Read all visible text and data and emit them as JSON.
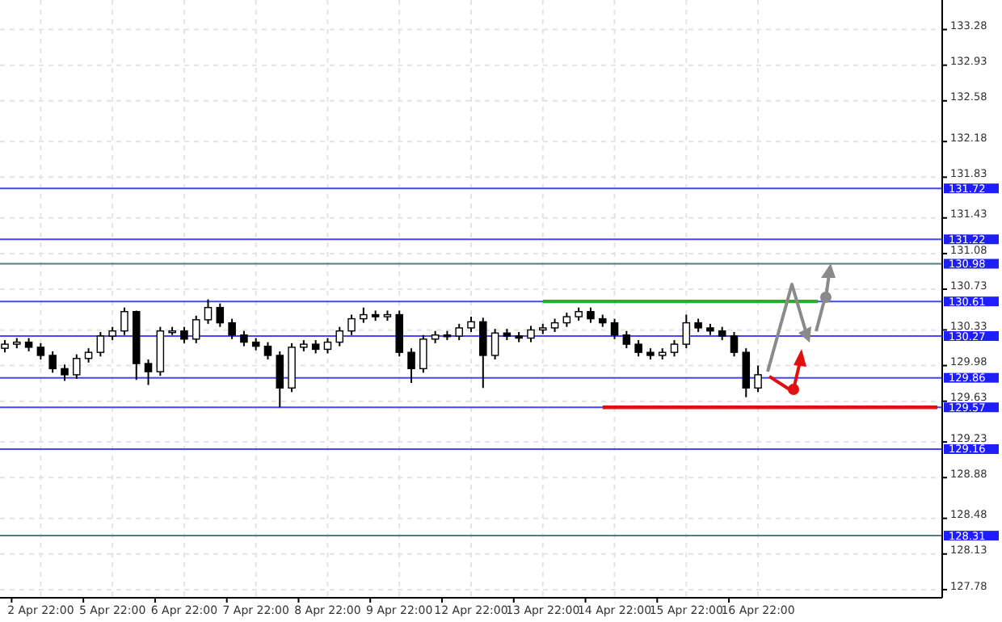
{
  "chart_data": {
    "type": "candlestick",
    "categories": [
      null,
      null,
      null,
      "2 Apr 22:00",
      null,
      null,
      null,
      null,
      null,
      "5 Apr 22:00",
      null,
      null,
      null,
      null,
      null,
      "6 Apr 22:00",
      null,
      null,
      null,
      null,
      null,
      "7 Apr 22:00",
      null,
      null,
      null,
      null,
      null,
      "8 Apr 22:00",
      null,
      null,
      null,
      null,
      null,
      "9 Apr 22:00",
      null,
      null,
      null,
      null,
      null,
      "12 Apr 22:00",
      null,
      null,
      null,
      null,
      null,
      "13 Apr 22:00",
      null,
      null,
      null,
      null,
      null,
      "14 Apr 22:00",
      null,
      null,
      null,
      null,
      null,
      "15 Apr 22:00",
      null,
      null,
      null,
      null,
      null,
      "16 Apr 22:00",
      null,
      null,
      null,
      null,
      null,
      null,
      null,
      null,
      null,
      null,
      null,
      null,
      null,
      null,
      null
    ],
    "ohlc": [
      [
        130.15,
        130.23,
        130.11,
        130.19
      ],
      [
        130.19,
        130.25,
        130.15,
        130.21
      ],
      [
        130.21,
        130.25,
        130.12,
        130.16
      ],
      [
        130.16,
        130.2,
        130.04,
        130.08
      ],
      [
        130.08,
        130.12,
        129.91,
        129.95
      ],
      [
        129.95,
        129.99,
        129.83,
        129.89
      ],
      [
        129.89,
        130.09,
        129.85,
        130.05
      ],
      [
        130.05,
        130.15,
        130.01,
        130.11
      ],
      [
        130.11,
        130.31,
        130.07,
        130.27
      ],
      [
        130.27,
        130.36,
        130.23,
        130.32
      ],
      [
        130.32,
        130.55,
        130.28,
        130.51
      ],
      [
        130.51,
        130.52,
        129.84,
        130.0
      ],
      [
        130.0,
        130.04,
        129.79,
        129.92
      ],
      [
        129.92,
        130.36,
        129.88,
        130.32
      ],
      [
        130.32,
        130.36,
        130.28,
        130.32
      ],
      [
        130.32,
        130.36,
        130.2,
        130.24
      ],
      [
        130.24,
        130.47,
        130.2,
        130.43
      ],
      [
        130.43,
        130.63,
        130.39,
        130.55
      ],
      [
        130.55,
        130.59,
        130.36,
        130.4
      ],
      [
        130.4,
        130.44,
        130.24,
        130.28
      ],
      [
        130.28,
        130.32,
        130.17,
        130.21
      ],
      [
        130.21,
        130.25,
        130.13,
        130.17
      ],
      [
        130.17,
        130.21,
        130.04,
        130.08
      ],
      [
        130.08,
        130.12,
        129.57,
        129.76
      ],
      [
        129.76,
        130.2,
        129.72,
        130.16
      ],
      [
        130.16,
        130.23,
        130.12,
        130.19
      ],
      [
        130.19,
        130.23,
        130.1,
        130.14
      ],
      [
        130.14,
        130.25,
        130.1,
        130.21
      ],
      [
        130.21,
        130.36,
        130.17,
        130.32
      ],
      [
        130.32,
        130.48,
        130.28,
        130.44
      ],
      [
        130.44,
        130.55,
        130.4,
        130.48
      ],
      [
        130.48,
        130.52,
        130.42,
        130.46
      ],
      [
        130.46,
        130.52,
        130.42,
        130.48
      ],
      [
        130.48,
        130.52,
        130.07,
        130.11
      ],
      [
        130.11,
        130.15,
        129.81,
        129.95
      ],
      [
        129.95,
        130.28,
        129.91,
        130.24
      ],
      [
        130.24,
        130.32,
        130.2,
        130.28
      ],
      [
        130.28,
        130.32,
        130.23,
        130.27
      ],
      [
        130.27,
        130.39,
        130.23,
        130.35
      ],
      [
        130.35,
        130.46,
        130.31,
        130.41
      ],
      [
        130.41,
        130.45,
        129.76,
        130.08
      ],
      [
        130.08,
        130.34,
        130.04,
        130.3
      ],
      [
        130.3,
        130.34,
        130.23,
        130.27
      ],
      [
        130.27,
        130.31,
        130.21,
        130.25
      ],
      [
        130.25,
        130.37,
        130.21,
        130.33
      ],
      [
        130.33,
        130.39,
        130.29,
        130.35
      ],
      [
        130.35,
        130.44,
        130.31,
        130.4
      ],
      [
        130.4,
        130.5,
        130.36,
        130.46
      ],
      [
        130.46,
        130.55,
        130.42,
        130.51
      ],
      [
        130.51,
        130.55,
        130.4,
        130.44
      ],
      [
        130.44,
        130.48,
        130.36,
        130.4
      ],
      [
        130.4,
        130.44,
        130.24,
        130.28
      ],
      [
        130.28,
        130.32,
        130.15,
        130.19
      ],
      [
        130.19,
        130.23,
        130.07,
        130.11
      ],
      [
        130.11,
        130.15,
        130.04,
        130.08
      ],
      [
        130.08,
        130.15,
        130.04,
        130.11
      ],
      [
        130.11,
        130.23,
        130.07,
        130.19
      ],
      [
        130.19,
        130.48,
        130.15,
        130.4
      ],
      [
        130.4,
        130.44,
        130.31,
        130.35
      ],
      [
        130.35,
        130.39,
        130.28,
        130.32
      ],
      [
        130.32,
        130.36,
        130.23,
        130.27
      ],
      [
        130.27,
        130.31,
        130.07,
        130.11
      ],
      [
        130.11,
        130.15,
        129.67,
        129.76
      ],
      [
        129.76,
        129.98,
        129.72,
        129.89
      ],
      null,
      null,
      null,
      null,
      null,
      null,
      null,
      null,
      null,
      null,
      null,
      null,
      null,
      null,
      null
    ],
    "series": [
      {
        "type": "line",
        "color": "#2eaa2e",
        "values": [
          null,
          null,
          null,
          null,
          null,
          null,
          null,
          null,
          null,
          null,
          null,
          null,
          null,
          null,
          null,
          null,
          null,
          null,
          null,
          null,
          null,
          null,
          null,
          null,
          null,
          null,
          null,
          null,
          null,
          null,
          null,
          null,
          null,
          null,
          null,
          null,
          null,
          null,
          null,
          null,
          null,
          null,
          null,
          null,
          null,
          130.61,
          130.61,
          130.61,
          130.61,
          130.61,
          130.61,
          130.61,
          130.61,
          130.61,
          130.61,
          130.61,
          130.61,
          130.61,
          130.61,
          130.61,
          130.61,
          130.61,
          130.61,
          130.61,
          130.61,
          130.61,
          130.61,
          130.61,
          130.61,
          null,
          null,
          null,
          null,
          null,
          null,
          null,
          null,
          null,
          null
        ]
      },
      {
        "type": "line",
        "color": "#e01010",
        "values": [
          null,
          null,
          null,
          null,
          null,
          null,
          null,
          null,
          null,
          null,
          null,
          null,
          null,
          null,
          null,
          null,
          null,
          null,
          null,
          null,
          null,
          null,
          null,
          null,
          null,
          null,
          null,
          null,
          null,
          null,
          null,
          null,
          null,
          null,
          null,
          null,
          null,
          null,
          null,
          null,
          null,
          null,
          null,
          null,
          null,
          null,
          null,
          null,
          null,
          null,
          129.57,
          129.57,
          129.57,
          129.57,
          129.57,
          129.57,
          129.57,
          129.57,
          129.57,
          129.57,
          129.57,
          129.57,
          129.57,
          129.57,
          129.57,
          129.57,
          129.57,
          129.57,
          129.57,
          129.57,
          129.57,
          129.57,
          129.57,
          129.57,
          129.57,
          129.57,
          129.57,
          129.57,
          129.57
        ]
      }
    ],
    "ylim": [
      127.7,
      133.57
    ],
    "yticks": [
      133.28,
      132.93,
      132.58,
      132.18,
      131.83,
      131.43,
      131.08,
      130.73,
      130.33,
      129.98,
      129.63,
      129.23,
      128.88,
      128.48,
      128.13,
      127.78
    ],
    "ref_lines": [
      {
        "axis": "y",
        "value": 131.72,
        "label": "131.72",
        "color": "#4646ff"
      },
      {
        "axis": "y",
        "value": 131.22,
        "label": "131.22",
        "color": "#4646ff"
      },
      {
        "axis": "y",
        "value": 130.98,
        "label": "130.98",
        "color": "#4a7f8a"
      },
      {
        "axis": "y",
        "value": 130.61,
        "label": "130.61",
        "color": "#4646ff"
      },
      {
        "axis": "y",
        "value": 130.27,
        "label": "130.27",
        "color": "#4646ff"
      },
      {
        "axis": "y",
        "value": 129.86,
        "label": "129.86",
        "color": "#4646ff"
      },
      {
        "axis": "y",
        "value": 129.57,
        "label": "129.57",
        "color": "#4646ff"
      },
      {
        "axis": "y",
        "value": 129.16,
        "label": "129.16",
        "color": "#4646ff"
      },
      {
        "axis": "y",
        "value": 128.31,
        "label": "128.31",
        "color": "#4a7f8a"
      }
    ],
    "grid": true
  }
}
